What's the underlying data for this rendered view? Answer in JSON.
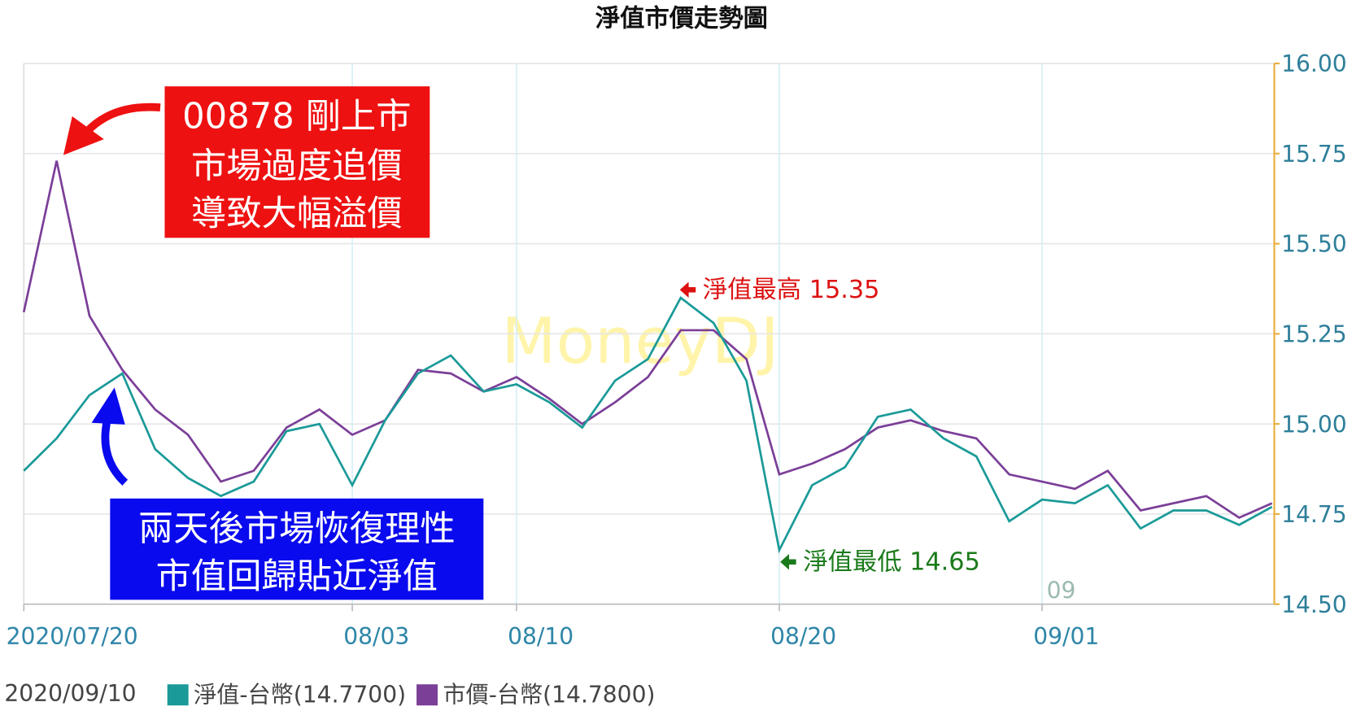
{
  "chart_data": {
    "type": "line",
    "title": "淨值市價走勢圖",
    "categories": [
      "2020/07/20",
      null,
      null,
      null,
      null,
      null,
      null,
      null,
      null,
      null,
      "08/03",
      null,
      null,
      null,
      null,
      "08/10",
      null,
      null,
      null,
      null,
      null,
      null,
      null,
      "08/20",
      null,
      null,
      null,
      null,
      null,
      null,
      null,
      "09/01",
      null,
      null,
      null,
      null,
      null,
      null,
      null
    ],
    "series": [
      {
        "name": "淨值-台幣(14.7700)",
        "color": "#1a9a98",
        "values": [
          14.87,
          14.96,
          15.08,
          15.14,
          14.93,
          14.85,
          14.8,
          14.84,
          14.98,
          15.0,
          14.83,
          15.01,
          15.14,
          15.19,
          15.09,
          15.11,
          15.06,
          14.99,
          15.12,
          15.18,
          15.35,
          15.28,
          15.12,
          14.65,
          14.83,
          14.88,
          15.02,
          15.04,
          14.96,
          14.91,
          14.73,
          14.79,
          14.78,
          14.83,
          14.71,
          14.76,
          14.76,
          14.72,
          14.77
        ]
      },
      {
        "name": "市價-台幣(14.7800)",
        "color": "#7b3f98",
        "values": [
          15.31,
          15.73,
          15.3,
          15.15,
          15.04,
          14.97,
          14.84,
          14.87,
          14.99,
          15.04,
          14.97,
          15.01,
          15.15,
          15.14,
          15.09,
          15.13,
          15.07,
          15.0,
          15.06,
          15.13,
          15.26,
          15.26,
          15.18,
          14.86,
          14.89,
          14.93,
          14.99,
          15.01,
          14.98,
          14.96,
          14.86,
          14.84,
          14.82,
          14.87,
          14.76,
          14.78,
          14.8,
          14.74,
          14.78
        ]
      }
    ],
    "ylim": [
      14.5,
      16
    ],
    "yticks": [
      {
        "value": 14.5,
        "label": "14.50"
      },
      {
        "value": 14.75,
        "label": "14.75"
      },
      {
        "value": 15,
        "label": "15.00"
      },
      {
        "value": 15.25,
        "label": "15.25"
      },
      {
        "value": 15.5,
        "label": "15.50"
      },
      {
        "value": 15.75,
        "label": "15.75"
      },
      {
        "value": 16,
        "label": "16.00"
      }
    ],
    "grid": true,
    "legend_date": "2020/09/10",
    "annotations": {
      "launch_note": [
        "00878 剛上市",
        "市場過度追價",
        "導致大幅溢價"
      ],
      "recovery_note": [
        "兩天後市場恢復理性",
        "市值回歸貼近淨值"
      ],
      "nav_high": "淨值最高 15.35",
      "nav_low": "淨值最低 14.65",
      "watermark": "MoneyDJ",
      "axis_fragment": "09"
    }
  }
}
